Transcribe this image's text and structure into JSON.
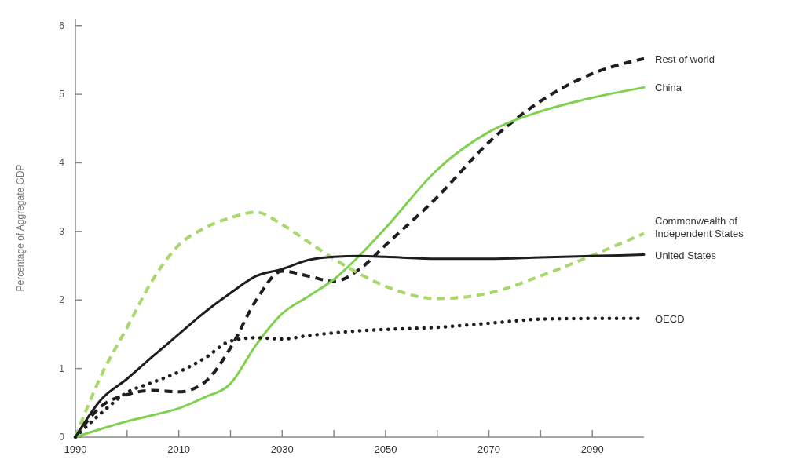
{
  "chart_data": {
    "type": "line",
    "ylabel": "Percentage of Aggregate GDP",
    "x": [
      1990,
      1995,
      2000,
      2005,
      2010,
      2015,
      2020,
      2025,
      2030,
      2035,
      2040,
      2045,
      2050,
      2060,
      2070,
      2080,
      2090,
      2100
    ],
    "xlim": [
      1990,
      2100
    ],
    "xticks": [
      1990,
      {
        "value": 2000,
        "label": null
      },
      2010,
      {
        "value": 2020,
        "label": null
      },
      2030,
      {
        "value": 2040,
        "label": null
      },
      2050,
      {
        "value": 2060,
        "label": null
      },
      2070,
      {
        "value": 2080,
        "label": null
      },
      2090
    ],
    "ylim": [
      0,
      6.1
    ],
    "yticks": [
      0,
      1,
      2,
      3,
      4,
      5,
      6
    ],
    "grid": false,
    "series": [
      {
        "name": "Rest of world",
        "color": "#1e1e1e",
        "line_style": "dashed",
        "values": [
          0,
          0.45,
          0.62,
          0.68,
          0.66,
          0.8,
          1.3,
          2.0,
          2.42,
          2.35,
          2.27,
          2.45,
          2.8,
          3.5,
          4.3,
          4.9,
          5.3,
          5.52
        ]
      },
      {
        "name": "China",
        "color": "#7fd14f",
        "line_style": "solid",
        "values": [
          0,
          0.12,
          0.23,
          0.32,
          0.42,
          0.58,
          0.78,
          1.35,
          1.8,
          2.05,
          2.3,
          2.65,
          3.05,
          3.9,
          4.45,
          4.75,
          4.95,
          5.1
        ]
      },
      {
        "name": "Commonwealth of Independent States",
        "color": "#a8d86a",
        "line_style": "dashed",
        "values": [
          0,
          0.9,
          1.6,
          2.3,
          2.8,
          3.05,
          3.2,
          3.28,
          3.1,
          2.85,
          2.6,
          2.38,
          2.2,
          2.02,
          2.1,
          2.35,
          2.65,
          2.97
        ]
      },
      {
        "name": "United States",
        "color": "#1e1e1e",
        "line_style": "solid",
        "values": [
          0,
          0.55,
          0.85,
          1.18,
          1.5,
          1.82,
          2.1,
          2.35,
          2.45,
          2.58,
          2.63,
          2.64,
          2.63,
          2.6,
          2.6,
          2.62,
          2.64,
          2.66
        ]
      },
      {
        "name": "OECD",
        "color": "#1e1e1e",
        "line_style": "dotted",
        "values": [
          0,
          0.35,
          0.65,
          0.8,
          0.95,
          1.15,
          1.4,
          1.45,
          1.43,
          1.48,
          1.52,
          1.55,
          1.57,
          1.6,
          1.66,
          1.72,
          1.73,
          1.73
        ]
      }
    ]
  }
}
